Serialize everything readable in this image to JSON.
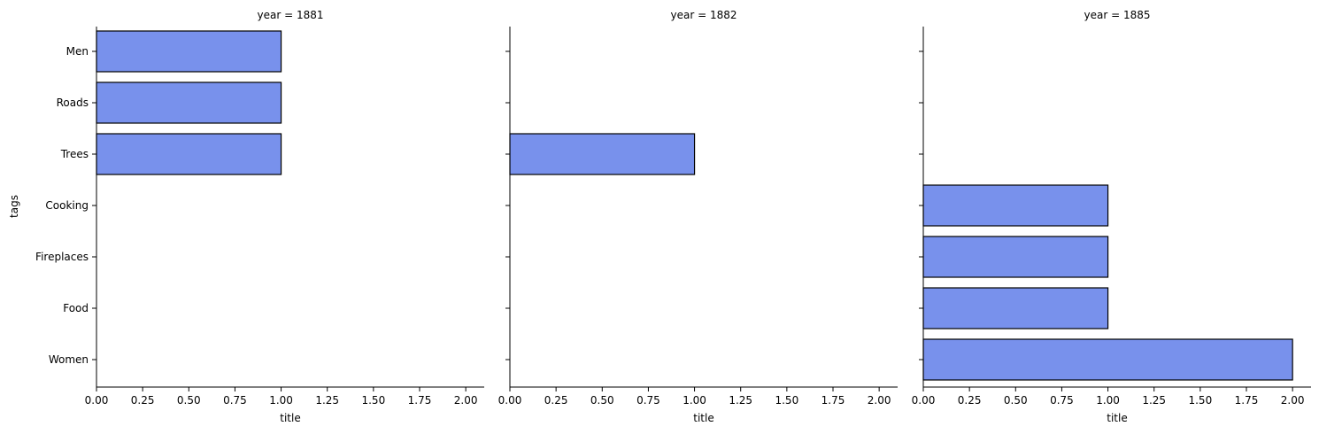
{
  "chart_data": {
    "type": "bar",
    "orientation": "horizontal",
    "ylabel": "tags",
    "xlabel": "title",
    "xlim": [
      0,
      2.1
    ],
    "xticks": [
      "0.00",
      "0.25",
      "0.50",
      "0.75",
      "1.00",
      "1.25",
      "1.50",
      "1.75",
      "2.00"
    ],
    "categories": [
      "Men",
      "Roads",
      "Trees",
      "Cooking",
      "Fireplaces",
      "Food",
      "Women"
    ],
    "grid": false,
    "colors": {
      "bar": "#7891ec",
      "edge": "#000000"
    },
    "facets": [
      {
        "title": "year = 1881",
        "values": [
          1,
          1,
          1,
          0,
          0,
          0,
          0
        ]
      },
      {
        "title": "year = 1882",
        "values": [
          0,
          0,
          1,
          0,
          0,
          0,
          0
        ]
      },
      {
        "title": "year = 1885",
        "values": [
          0,
          0,
          0,
          1,
          1,
          1,
          2
        ]
      }
    ]
  }
}
